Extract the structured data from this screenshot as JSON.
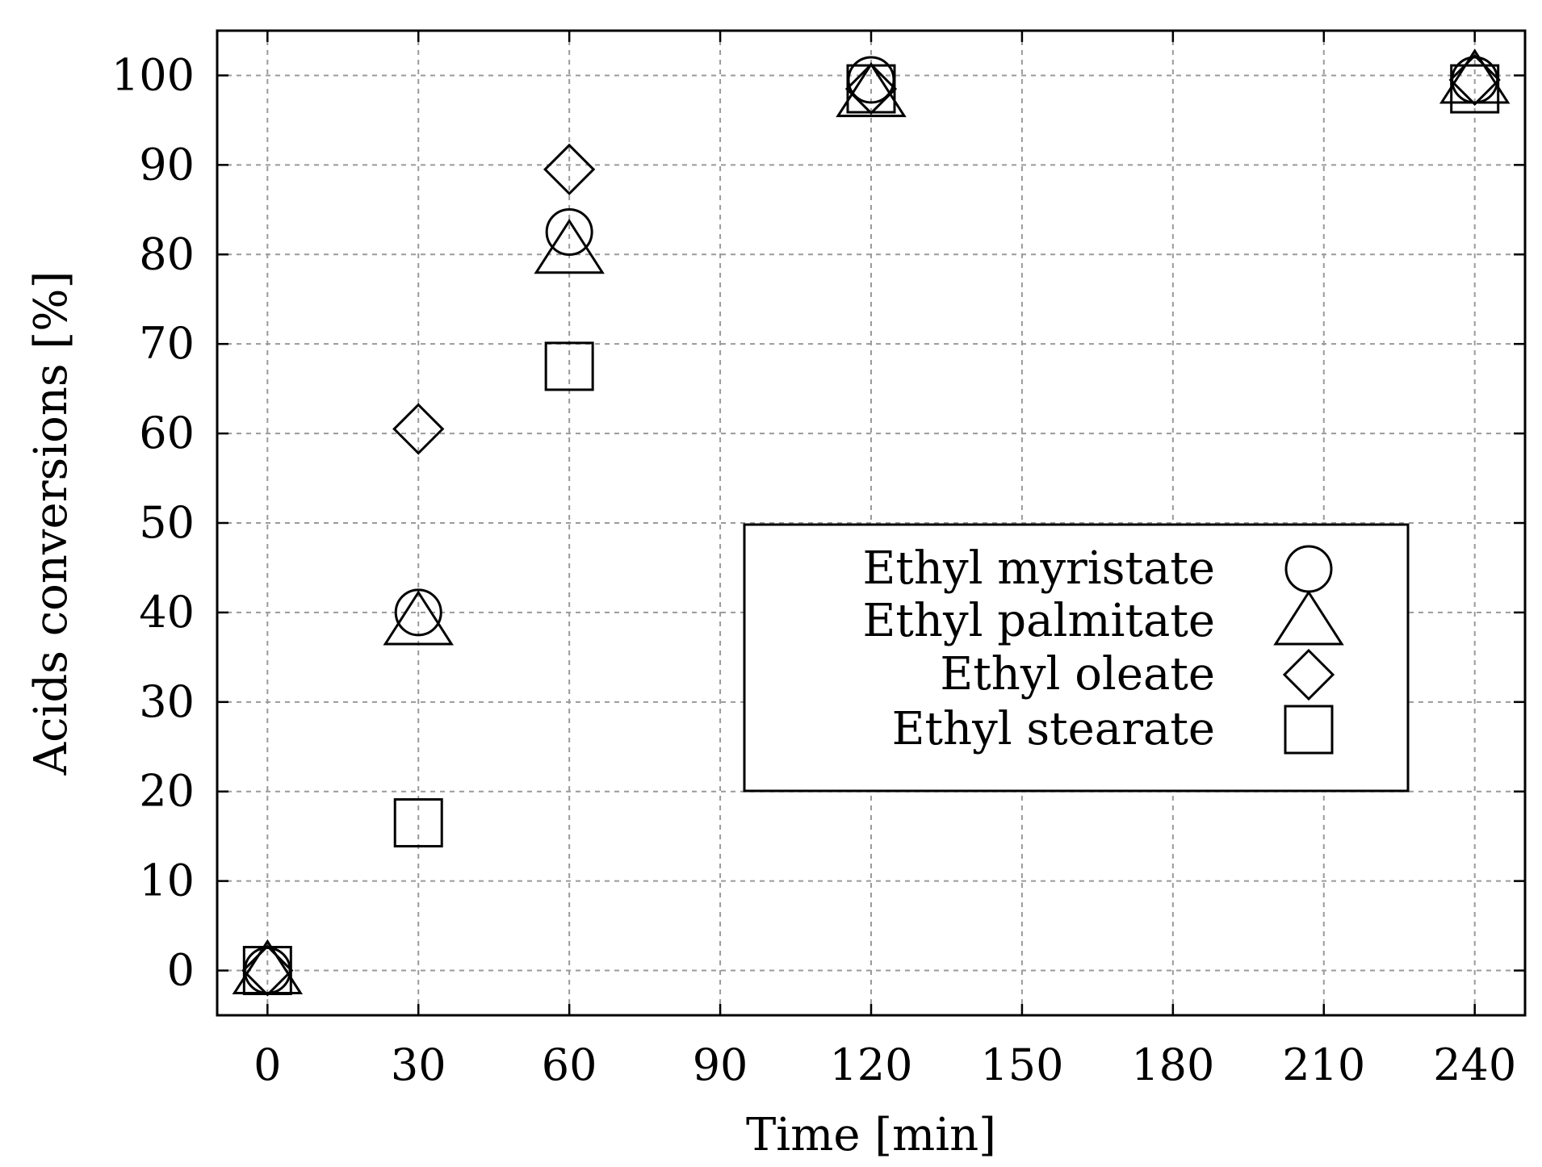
{
  "chart_data": {
    "type": "scatter",
    "xlabel": "Time [min]",
    "ylabel": "Acids conversions [%]",
    "xlim": [
      -10,
      250
    ],
    "ylim": [
      -5,
      105
    ],
    "xticks": [
      0,
      30,
      60,
      90,
      120,
      150,
      180,
      210,
      240
    ],
    "yticks": [
      0,
      10,
      20,
      30,
      40,
      50,
      60,
      70,
      80,
      90,
      100
    ],
    "xtick_labels": [
      "0",
      "30",
      "60",
      "90",
      "120",
      "150",
      "180",
      "210",
      "240"
    ],
    "ytick_labels": [
      "0",
      "10",
      "20",
      "30",
      "40",
      "50",
      "60",
      "70",
      "80",
      "90",
      "100"
    ],
    "grid": true,
    "legend_position": "center-right",
    "series": [
      {
        "name": "Ethyl myristate",
        "marker": "circle",
        "x": [
          0,
          30,
          60,
          120,
          240
        ],
        "y": [
          0,
          40,
          82.5,
          99.5,
          99.5
        ]
      },
      {
        "name": "Ethyl palmitate",
        "marker": "triangle",
        "x": [
          0,
          30,
          60,
          120,
          240
        ],
        "y": [
          0,
          39,
          80.5,
          98,
          99.5
        ]
      },
      {
        "name": "Ethyl oleate",
        "marker": "diamond",
        "x": [
          0,
          30,
          60,
          120,
          240
        ],
        "y": [
          0,
          60.5,
          89.5,
          98.5,
          99.5
        ]
      },
      {
        "name": "Ethyl stearate",
        "marker": "square",
        "x": [
          0,
          30,
          60,
          120,
          240
        ],
        "y": [
          0,
          16.5,
          67.5,
          98.5,
          98.5
        ]
      }
    ]
  }
}
